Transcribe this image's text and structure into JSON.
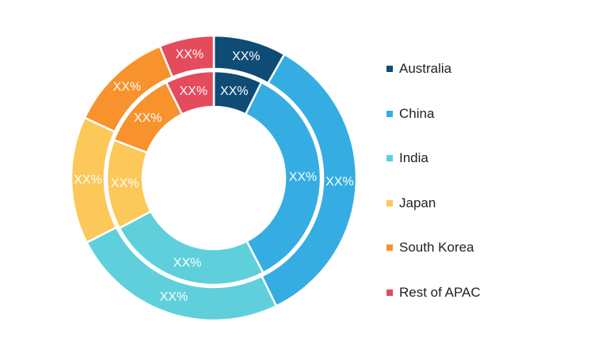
{
  "chart_data": {
    "type": "pie",
    "variant": "nested-donut",
    "categories": [
      "Australia",
      "China",
      "India",
      "Japan",
      "South Korea",
      "Rest of APAC"
    ],
    "colors": [
      "#0f4c75",
      "#35ade3",
      "#5fd0db",
      "#fcc85a",
      "#f8922d",
      "#e44b5c"
    ],
    "series": [
      {
        "ring": "inner",
        "values": [
          6.5,
          31,
          22,
          12,
          10.5,
          6.5
        ],
        "labels": [
          "XX%",
          "XX%",
          "XX%",
          "XX%",
          "XX%",
          "XX%"
        ]
      },
      {
        "ring": "outer",
        "values": [
          8,
          33.5,
          24,
          14,
          11.5,
          6
        ],
        "labels": [
          "XX%",
          "XX%",
          "XX%",
          "XX%",
          "XX%",
          "XX%"
        ]
      }
    ],
    "legend_position": "right"
  }
}
